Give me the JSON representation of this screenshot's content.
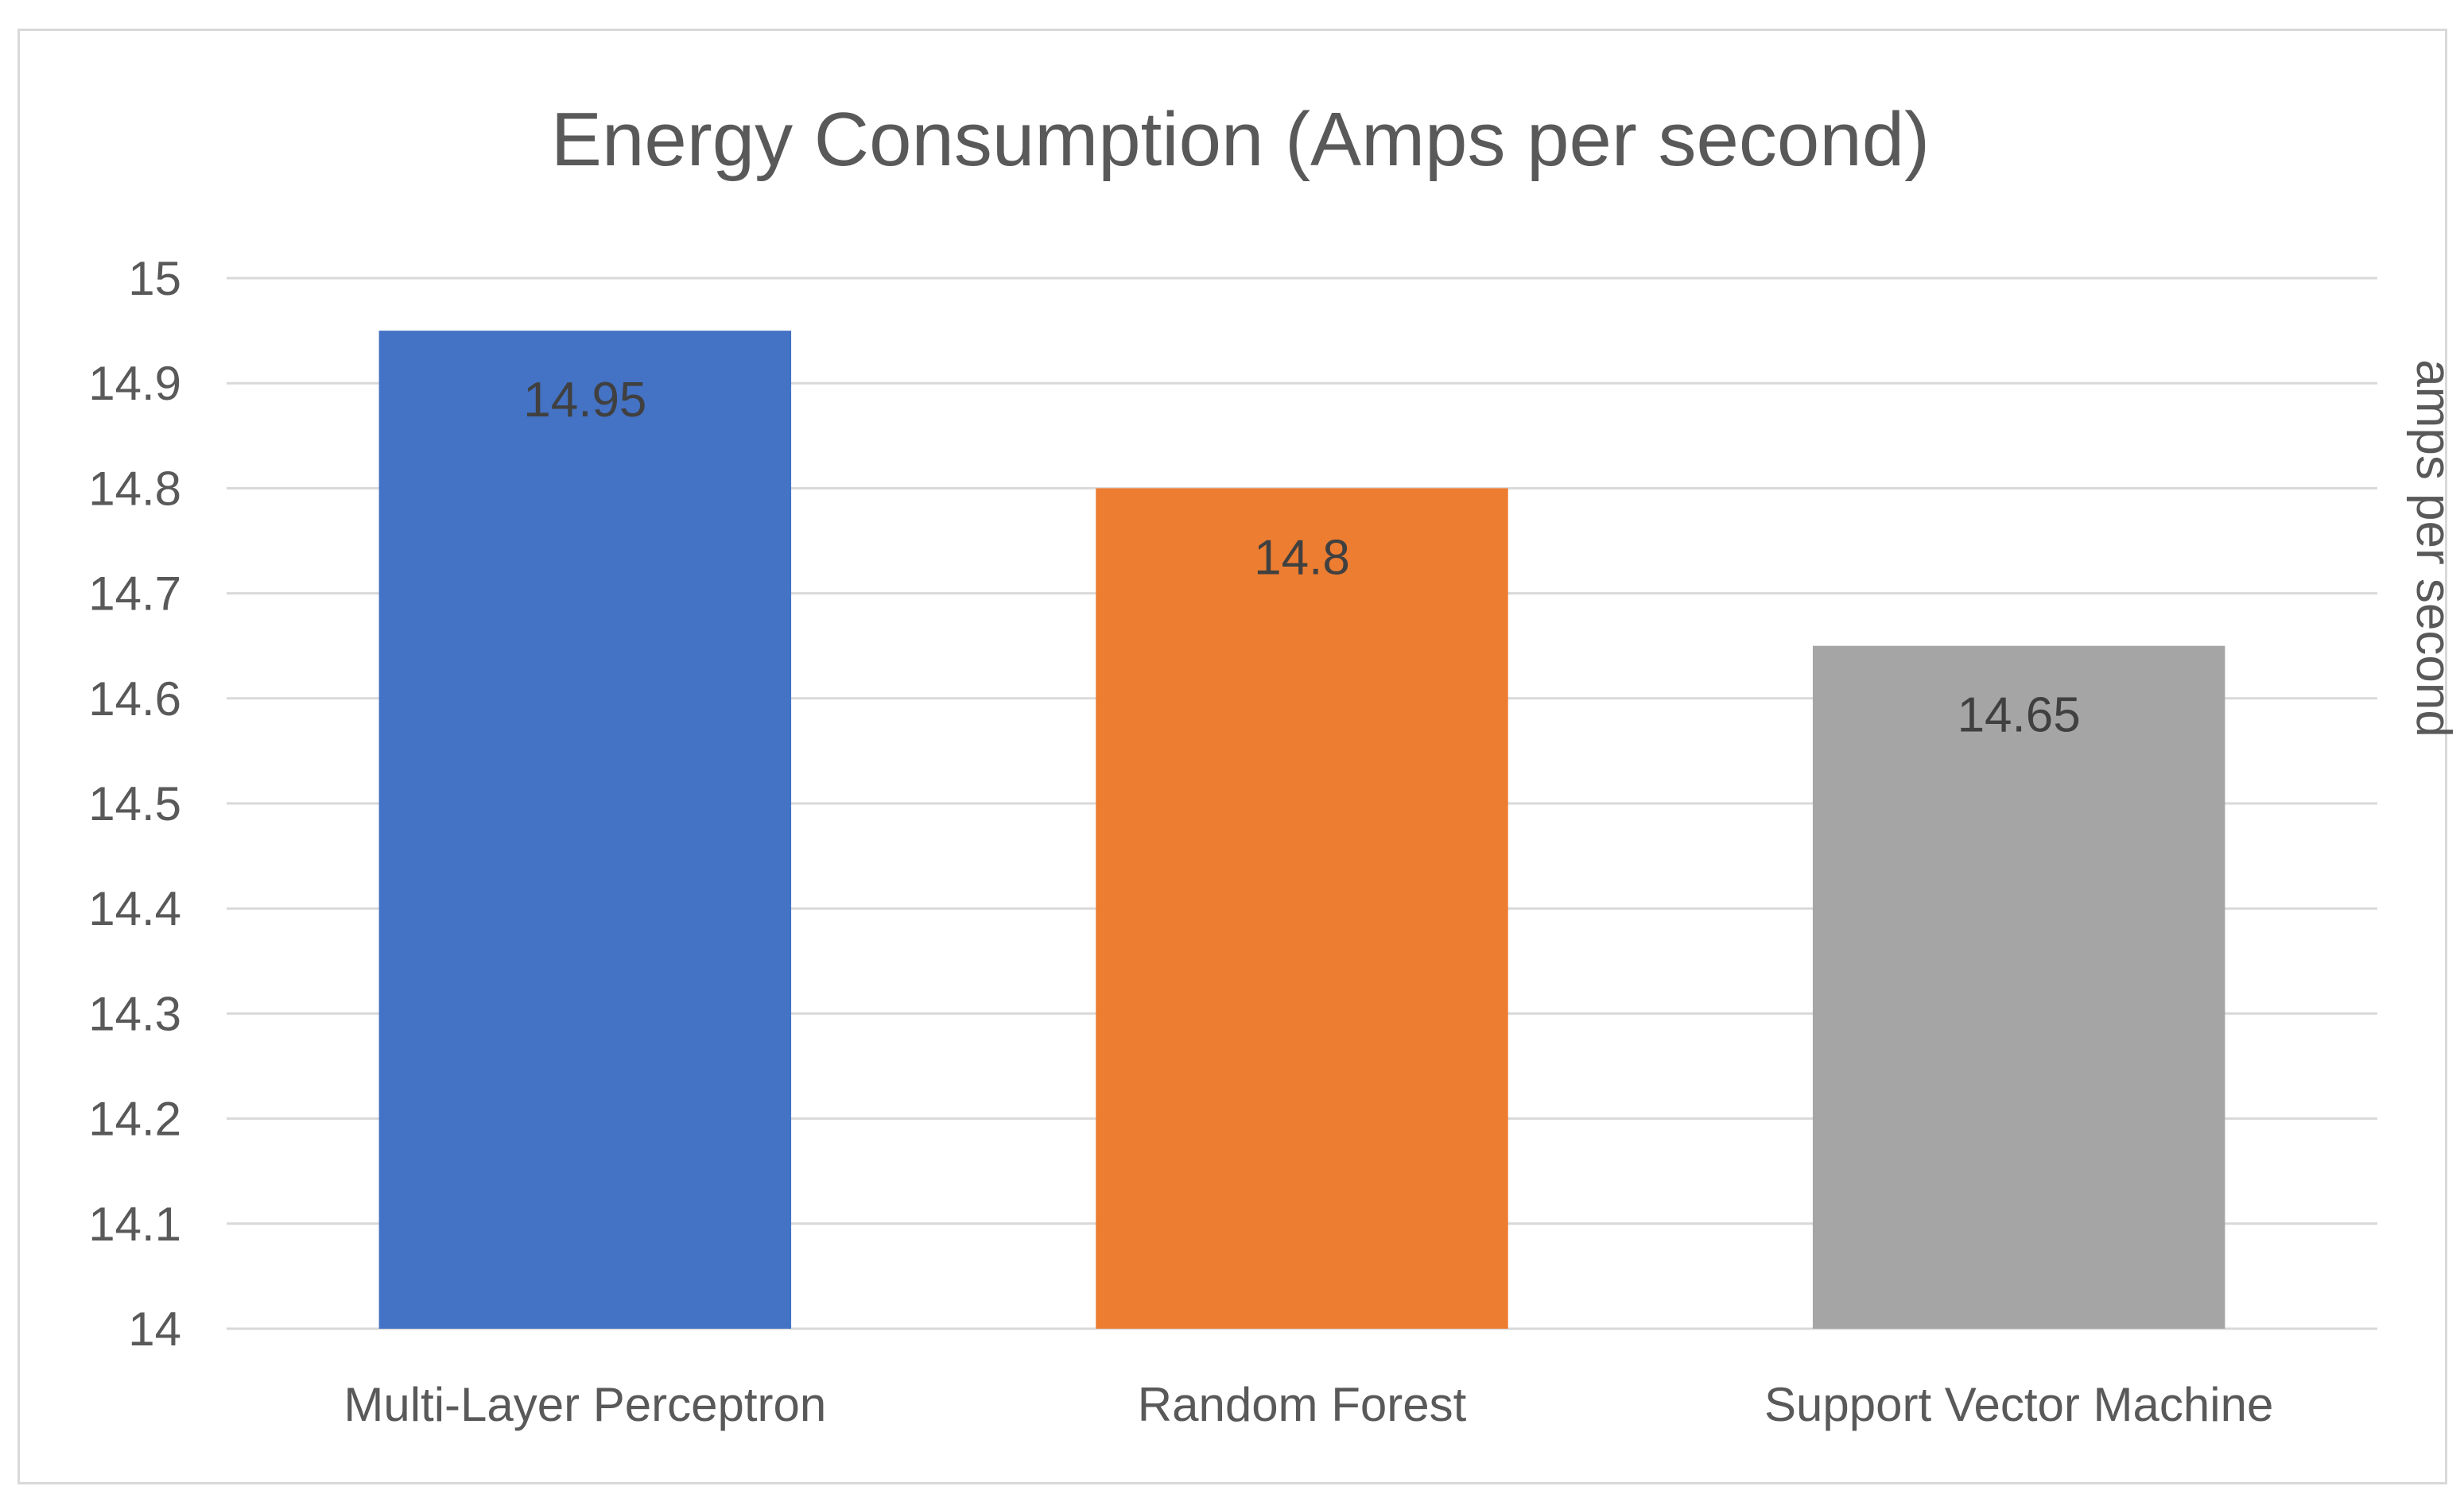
{
  "chart_data": {
    "type": "bar",
    "title": "Energy Consumption (Amps per second)",
    "xlabel": "",
    "ylabel": "amps per second",
    "ylabel_position": "right",
    "categories": [
      "Multi-Layer Perceptron",
      "Random Forest",
      "Support Vector Machine"
    ],
    "values": [
      14.95,
      14.8,
      14.65
    ],
    "data_labels": [
      "14.95",
      "14.8",
      "14.65"
    ],
    "colors": [
      "#4472c4",
      "#ed7d31",
      "#a5a5a5"
    ],
    "ylim": [
      14,
      15
    ],
    "yticks": [
      "14",
      "14.1",
      "14.2",
      "14.3",
      "14.4",
      "14.5",
      "14.6",
      "14.7",
      "14.8",
      "14.9",
      "15"
    ],
    "grid": true,
    "legend": "none"
  }
}
